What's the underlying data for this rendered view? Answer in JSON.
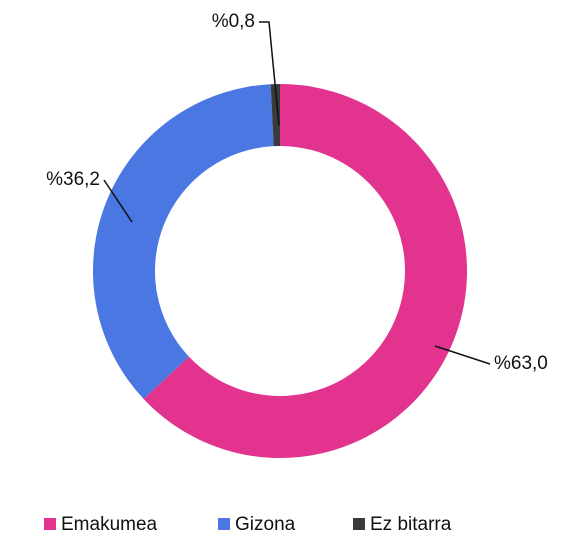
{
  "chart_data": {
    "type": "donut",
    "categories": [
      "Emakumea",
      "Gizona",
      "Ez bitarra"
    ],
    "values": [
      63.0,
      36.2,
      0.8
    ],
    "value_labels": [
      "%63,0",
      "%36,2",
      "%0,8"
    ],
    "colors": [
      "#e2338f",
      "#4a77e2",
      "#3a3a3a"
    ]
  }
}
